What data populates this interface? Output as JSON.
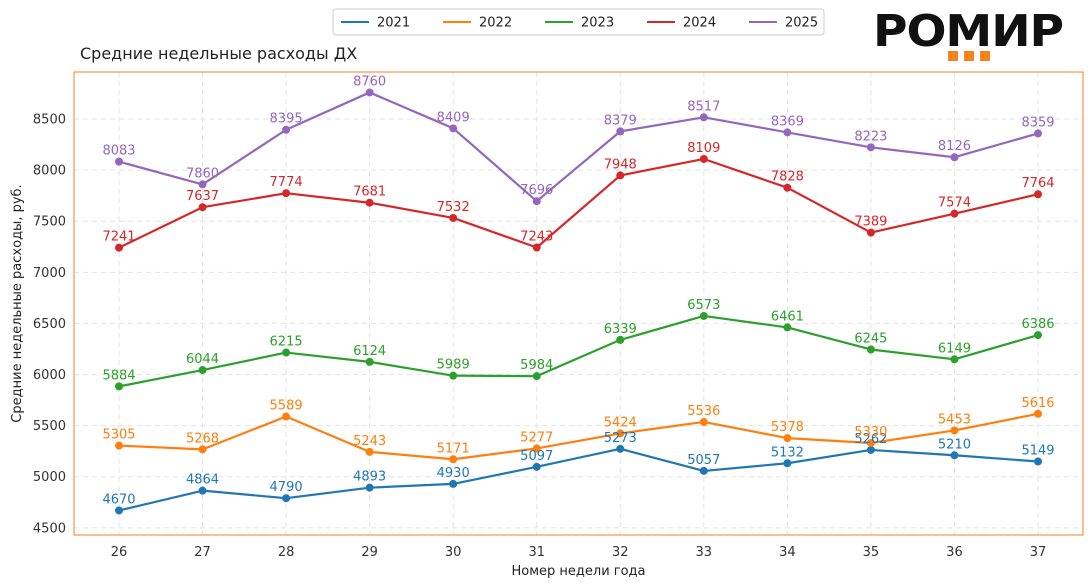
{
  "chart_data": {
    "type": "line",
    "title": "Средние недельные расходы ДХ",
    "xlabel": "Номер недели года",
    "ylabel": "Средние недельные расходы, руб.",
    "x": [
      26,
      27,
      28,
      29,
      30,
      31,
      32,
      33,
      34,
      35,
      36,
      37
    ],
    "yticks": [
      4500,
      5000,
      5500,
      6000,
      6500,
      7000,
      7500,
      8000,
      8500
    ],
    "ylim": [
      4430,
      8960
    ],
    "grid": true,
    "legend_position": "top-center",
    "series": [
      {
        "name": "2021",
        "color": "#1f77b4",
        "values": [
          4670,
          4864,
          4790,
          4893,
          4930,
          5097,
          5273,
          5057,
          5132,
          5262,
          5210,
          5149
        ]
      },
      {
        "name": "2022",
        "color": "#ff7f0e",
        "values": [
          5305,
          5268,
          5589,
          5243,
          5171,
          5277,
          5424,
          5536,
          5378,
          5330,
          5453,
          5616
        ]
      },
      {
        "name": "2023",
        "color": "#2ca02c",
        "values": [
          5884,
          6044,
          6215,
          6124,
          5989,
          5984,
          6339,
          6573,
          6461,
          6245,
          6149,
          6386
        ]
      },
      {
        "name": "2024",
        "color": "#d62728",
        "values": [
          7241,
          7637,
          7774,
          7681,
          7532,
          7243,
          7948,
          8109,
          7828,
          7389,
          7574,
          7764
        ]
      },
      {
        "name": "2025",
        "color": "#9467bd",
        "values": [
          8083,
          7860,
          8395,
          8760,
          8409,
          7696,
          8379,
          8517,
          8369,
          8223,
          8126,
          8359
        ]
      }
    ]
  },
  "logo": {
    "text": "РОМИР",
    "accent_color": "#f5821f"
  },
  "frame_color": "#f5821f"
}
